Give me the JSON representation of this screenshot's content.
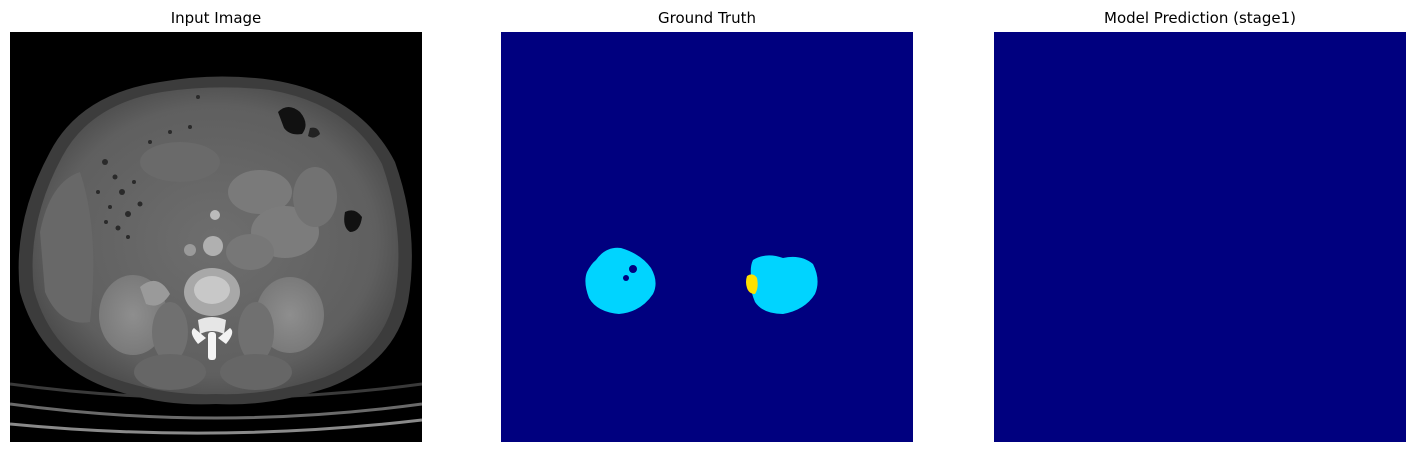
{
  "panels": [
    {
      "title": "Input Image"
    },
    {
      "title": "Ground Truth"
    },
    {
      "title": "Model Prediction (stage1)"
    }
  ],
  "colors": {
    "background_class": "#00007f",
    "kidney_class": "#00d4ff",
    "tumor_class": "#ffe000",
    "ct_background": "#000000"
  }
}
